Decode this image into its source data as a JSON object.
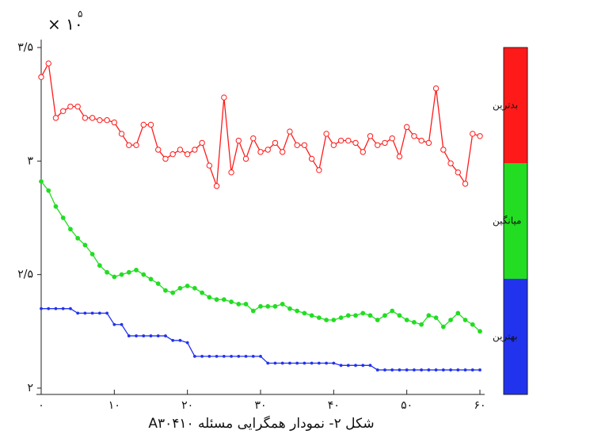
{
  "chart_data": {
    "type": "line",
    "multiplier_base": "× ۱۰",
    "multiplier_exponent": "۵",
    "caption": "شکل ۲- نمودار همگرایی مسئله A۳۰۴۱۰",
    "x": [
      0,
      1,
      2,
      3,
      4,
      5,
      6,
      7,
      8,
      9,
      10,
      11,
      12,
      13,
      14,
      15,
      16,
      17,
      18,
      19,
      20,
      21,
      22,
      23,
      24,
      25,
      26,
      27,
      28,
      29,
      30,
      31,
      32,
      33,
      34,
      35,
      36,
      37,
      38,
      39,
      40,
      41,
      42,
      43,
      44,
      45,
      46,
      47,
      48,
      49,
      50,
      51,
      52,
      53,
      54,
      55,
      56,
      57,
      58,
      59,
      60
    ],
    "xlim": [
      0,
      60
    ],
    "xticks": [
      {
        "value": 0,
        "label": "۰"
      },
      {
        "value": 10,
        "label": "۱۰"
      },
      {
        "value": 20,
        "label": "۲۰"
      },
      {
        "value": 30,
        "label": "۳۰"
      },
      {
        "value": 40,
        "label": "۴۰"
      },
      {
        "value": 50,
        "label": "۵۰"
      },
      {
        "value": 60,
        "label": "۶۰"
      }
    ],
    "ylim": [
      2,
      3.5
    ],
    "yticks": [
      {
        "value": 2,
        "label": "۲"
      },
      {
        "value": 2.5,
        "label": "۲/۵"
      },
      {
        "value": 3,
        "label": "۳"
      },
      {
        "value": 3.5,
        "label": "۳/۵"
      }
    ],
    "legend": "right",
    "series": [
      {
        "name": "بدترین",
        "color": "#ff1a1a",
        "marker": "circle",
        "values": [
          3.37,
          3.43,
          3.19,
          3.22,
          3.24,
          3.24,
          3.19,
          3.19,
          3.18,
          3.18,
          3.17,
          3.12,
          3.07,
          3.07,
          3.16,
          3.16,
          3.05,
          3.01,
          3.03,
          3.05,
          3.03,
          3.05,
          3.08,
          2.98,
          2.89,
          3.28,
          2.95,
          3.09,
          3.01,
          3.1,
          3.04,
          3.05,
          3.08,
          3.04,
          3.13,
          3.07,
          3.07,
          3.01,
          2.96,
          3.12,
          3.07,
          3.09,
          3.09,
          3.08,
          3.04,
          3.11,
          3.07,
          3.08,
          3.1,
          3.02,
          3.15,
          3.11,
          3.09,
          3.08,
          3.32,
          3.05,
          2.99,
          2.95,
          2.9,
          3.12,
          3.11
        ]
      },
      {
        "name": "میانگین",
        "color": "#22dd22",
        "marker": "dot",
        "values": [
          2.91,
          2.87,
          2.8,
          2.75,
          2.7,
          2.66,
          2.63,
          2.59,
          2.54,
          2.51,
          2.49,
          2.5,
          2.51,
          2.52,
          2.5,
          2.48,
          2.46,
          2.43,
          2.42,
          2.44,
          2.45,
          2.44,
          2.42,
          2.4,
          2.39,
          2.39,
          2.38,
          2.37,
          2.37,
          2.34,
          2.36,
          2.36,
          2.36,
          2.37,
          2.35,
          2.34,
          2.33,
          2.32,
          2.31,
          2.3,
          2.3,
          2.31,
          2.32,
          2.32,
          2.33,
          2.32,
          2.3,
          2.32,
          2.34,
          2.32,
          2.3,
          2.29,
          2.28,
          2.32,
          2.31,
          2.27,
          2.3,
          2.33,
          2.3,
          2.28,
          2.25
        ]
      },
      {
        "name": "بهترین",
        "color": "#2233ee",
        "marker": "small",
        "values": [
          2.35,
          2.35,
          2.35,
          2.35,
          2.35,
          2.33,
          2.33,
          2.33,
          2.33,
          2.33,
          2.28,
          2.28,
          2.23,
          2.23,
          2.23,
          2.23,
          2.23,
          2.23,
          2.21,
          2.21,
          2.2,
          2.14,
          2.14,
          2.14,
          2.14,
          2.14,
          2.14,
          2.14,
          2.14,
          2.14,
          2.14,
          2.11,
          2.11,
          2.11,
          2.11,
          2.11,
          2.11,
          2.11,
          2.11,
          2.11,
          2.11,
          2.1,
          2.1,
          2.1,
          2.1,
          2.1,
          2.08,
          2.08,
          2.08,
          2.08,
          2.08,
          2.08,
          2.08,
          2.08,
          2.08,
          2.08,
          2.08,
          2.08,
          2.08,
          2.08,
          2.08
        ]
      }
    ]
  }
}
